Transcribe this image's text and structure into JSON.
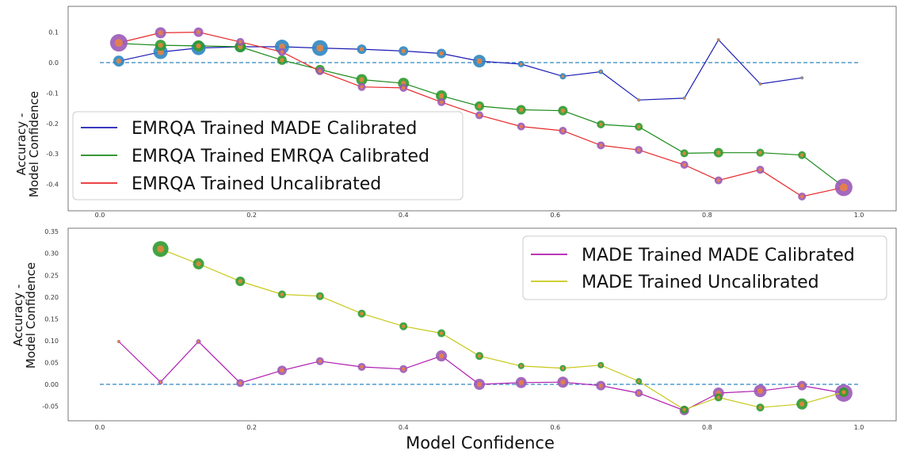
{
  "chart_data": [
    {
      "type": "line",
      "xlabel": "",
      "ylabel": "Accuracy -\nModel Confidence",
      "xlim": [
        0.0,
        1.0
      ],
      "ylim": [
        -0.45,
        0.13
      ],
      "xticks": [
        "0.0",
        "0.2",
        "0.4",
        "0.6",
        "0.8",
        "1.0"
      ],
      "yticks": [
        "0.1",
        "0.0",
        "-0.1",
        "-0.2",
        "-0.3",
        "-0.4"
      ],
      "ytick_values": [
        0.1,
        0.0,
        -0.1,
        -0.2,
        -0.3,
        -0.4
      ],
      "reference_line": 0.0,
      "legend_position": "lower-left",
      "series": [
        {
          "name": "EMRQA Trained MADE Calibrated",
          "color": "#1b1bb5",
          "marker_color": "#2e86c1",
          "x": [
            0.025,
            0.08,
            0.13,
            0.185,
            0.24,
            0.29,
            0.345,
            0.4,
            0.45,
            0.5,
            0.555,
            0.61,
            0.66,
            0.71,
            0.77,
            0.815,
            0.87,
            0.925
          ],
          "y": [
            0.005,
            0.035,
            0.048,
            0.052,
            0.052,
            0.048,
            0.044,
            0.038,
            0.03,
            0.005,
            -0.005,
            -0.045,
            -0.03,
            -0.123,
            -0.117,
            0.075,
            -0.07,
            -0.05
          ],
          "sizes": [
            7,
            9,
            9,
            7,
            9,
            10,
            6,
            6,
            6,
            8,
            4,
            4,
            3,
            2,
            2,
            2,
            2,
            2
          ]
        },
        {
          "name": "EMRQA Trained EMRQA Calibrated",
          "color": "#1a8a1a",
          "marker_color": "#2e9a2e",
          "x": [
            0.025,
            0.08,
            0.13,
            0.185,
            0.24,
            0.29,
            0.345,
            0.4,
            0.45,
            0.5,
            0.555,
            0.61,
            0.66,
            0.71,
            0.77,
            0.815,
            0.87,
            0.925,
            0.98
          ],
          "y": [
            0.063,
            0.057,
            0.055,
            0.052,
            0.008,
            -0.023,
            -0.056,
            -0.068,
            -0.109,
            -0.143,
            -0.155,
            -0.158,
            -0.203,
            -0.211,
            -0.298,
            -0.296,
            -0.296,
            -0.304,
            -0.408
          ],
          "sizes": [
            3,
            7,
            7,
            7,
            6,
            6,
            7,
            7,
            7,
            6,
            6,
            6,
            5,
            5,
            5,
            6,
            5,
            5,
            3
          ]
        },
        {
          "name": "EMRQA Trained Uncalibrated",
          "color": "#e8282a",
          "marker_color": "#9b59b6",
          "x": [
            0.025,
            0.08,
            0.13,
            0.185,
            0.24,
            0.29,
            0.345,
            0.4,
            0.45,
            0.5,
            0.555,
            0.61,
            0.66,
            0.71,
            0.77,
            0.815,
            0.87,
            0.925,
            0.98
          ],
          "y": [
            0.065,
            0.098,
            0.1,
            0.068,
            0.035,
            -0.028,
            -0.08,
            -0.083,
            -0.13,
            -0.173,
            -0.21,
            -0.224,
            -0.272,
            -0.287,
            -0.336,
            -0.387,
            -0.352,
            -0.44,
            -0.41
          ],
          "sizes": [
            11,
            7,
            6,
            5,
            5,
            5,
            5,
            5,
            5,
            5,
            5,
            5,
            5,
            5,
            5,
            5,
            5,
            5,
            11
          ]
        }
      ]
    },
    {
      "type": "line",
      "xlabel": "Model Confidence",
      "ylabel": "Accuracy -\nModel Confidence",
      "xlim": [
        0.0,
        1.0
      ],
      "ylim": [
        -0.075,
        0.35
      ],
      "xticks": [
        "0.0",
        "0.2",
        "0.4",
        "0.6",
        "0.8",
        "1.0"
      ],
      "yticks": [
        "0.35",
        "0.30",
        "0.25",
        "0.20",
        "0.15",
        "0.10",
        "0.05",
        "0.00",
        "-0.05"
      ],
      "ytick_values": [
        0.35,
        0.3,
        0.25,
        0.2,
        0.15,
        0.1,
        0.05,
        0.0,
        -0.05
      ],
      "reference_line": 0.0,
      "legend_position": "top-right",
      "series": [
        {
          "name": "MADE Trained MADE Calibrated",
          "color": "#b01ab0",
          "marker_color": "#9b59b6",
          "x": [
            0.025,
            0.08,
            0.13,
            0.185,
            0.24,
            0.29,
            0.345,
            0.4,
            0.45,
            0.5,
            0.555,
            0.61,
            0.66,
            0.71,
            0.77,
            0.815,
            0.87,
            0.925,
            0.98
          ],
          "y": [
            0.098,
            0.005,
            0.098,
            0.003,
            0.032,
            0.053,
            0.04,
            0.035,
            0.065,
            0.0,
            0.004,
            0.005,
            -0.003,
            -0.02,
            -0.06,
            -0.02,
            -0.015,
            -0.003,
            -0.02
          ],
          "sizes": [
            2,
            3,
            3,
            5,
            6,
            5,
            5,
            5,
            7,
            7,
            7,
            7,
            6,
            5,
            6,
            7,
            8,
            6,
            11
          ]
        },
        {
          "name": "MADE Trained Uncalibrated",
          "color": "#c8c81a",
          "marker_color": "#2e9a2e",
          "x": [
            0.08,
            0.13,
            0.185,
            0.24,
            0.29,
            0.345,
            0.4,
            0.45,
            0.5,
            0.555,
            0.61,
            0.66,
            0.71,
            0.77,
            0.815,
            0.87,
            0.925,
            0.98
          ],
          "y": [
            0.31,
            0.276,
            0.236,
            0.206,
            0.202,
            0.162,
            0.133,
            0.117,
            0.065,
            0.042,
            0.037,
            0.044,
            0.007,
            -0.058,
            -0.03,
            -0.053,
            -0.045,
            -0.018
          ],
          "sizes": [
            10,
            7,
            6,
            5,
            5,
            5,
            5,
            5,
            5,
            4,
            4,
            4,
            4,
            5,
            5,
            5,
            7,
            6
          ]
        }
      ]
    }
  ]
}
